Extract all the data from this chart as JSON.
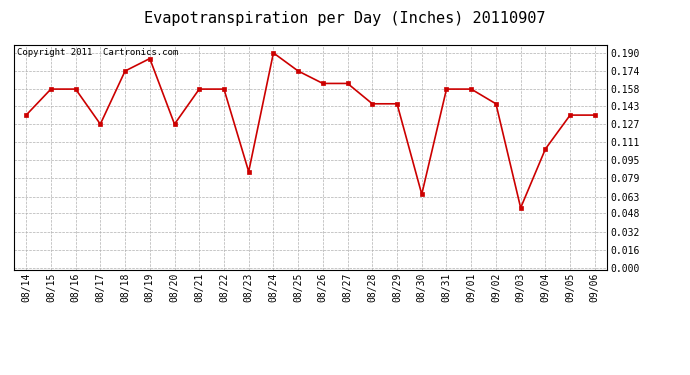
{
  "title": "Evapotranspiration per Day (Inches) 20110907",
  "copyright_text": "Copyright 2011  Cartronics.com",
  "dates": [
    "08/14",
    "08/15",
    "08/16",
    "08/17",
    "08/18",
    "08/19",
    "08/20",
    "08/21",
    "08/22",
    "08/23",
    "08/24",
    "08/25",
    "08/26",
    "08/27",
    "08/28",
    "08/29",
    "08/30",
    "08/31",
    "09/01",
    "09/02",
    "09/03",
    "09/04",
    "09/05",
    "09/06"
  ],
  "values": [
    0.135,
    0.158,
    0.158,
    0.127,
    0.174,
    0.185,
    0.127,
    0.158,
    0.158,
    0.085,
    0.19,
    0.174,
    0.163,
    0.163,
    0.145,
    0.145,
    0.065,
    0.158,
    0.158,
    0.145,
    0.053,
    0.105,
    0.135,
    0.135
  ],
  "line_color": "#cc0000",
  "marker": "s",
  "marker_size": 2.5,
  "marker_facecolor": "#cc0000",
  "background_color": "#ffffff",
  "grid_color": "#b0b0b0",
  "yticks": [
    0.0,
    0.016,
    0.032,
    0.048,
    0.063,
    0.079,
    0.095,
    0.111,
    0.127,
    0.143,
    0.158,
    0.174,
    0.19
  ],
  "title_fontsize": 11,
  "copyright_fontsize": 6.5,
  "tick_fontsize": 7
}
